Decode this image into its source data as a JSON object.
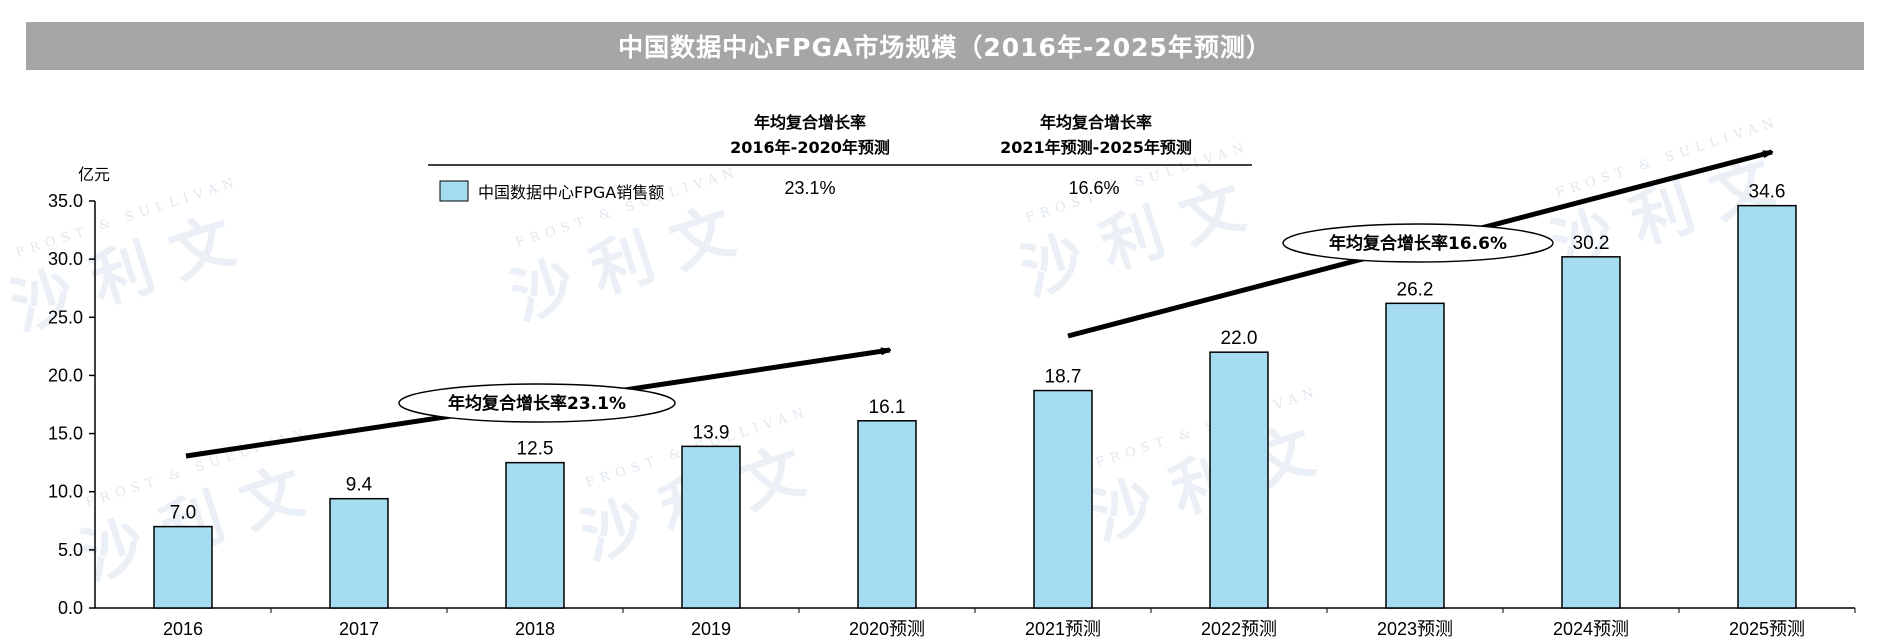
{
  "title": "中国数据中心FPGA市场规模（2016年-2025年预测）",
  "unit": "亿元",
  "legend_label": "中国数据中心FPGA销售额",
  "cagr_table": {
    "col1_header_line1": "年均复合增长率",
    "col1_header_line2": "2016年-2020年预测",
    "col1_value": "23.1%",
    "col2_header_line1": "年均复合增长率",
    "col2_header_line2": "2021年预测-2025年预测",
    "col2_value": "16.6%"
  },
  "annotations": {
    "cagr1": "年均复合增长率23.1%",
    "cagr2": "年均复合增长率16.6%"
  },
  "watermark": {
    "logo_text": "沙 利 文",
    "sub_text": "FROST & SULLIVAN"
  },
  "colors": {
    "bar_fill": "#a6dcf0",
    "bar_stroke": "#000000",
    "title_bar": "#a6a6a6"
  },
  "chart_data": {
    "type": "bar",
    "title": "中国数据中心FPGA市场规模（2016年-2025年预测）",
    "ylabel": "亿元",
    "xlabel": "",
    "categories": [
      "2016",
      "2017",
      "2018",
      "2019",
      "2020预测",
      "2021预测",
      "2022预测",
      "2023预测",
      "2024预测",
      "2025预测"
    ],
    "series": [
      {
        "name": "中国数据中心FPGA销售额",
        "values": [
          7.0,
          9.4,
          12.5,
          13.9,
          16.1,
          18.7,
          22.0,
          26.2,
          30.2,
          34.6
        ]
      }
    ],
    "ylim": [
      0,
      35
    ],
    "yticks": [
      "0.0",
      "5.0",
      "10.0",
      "15.0",
      "20.0",
      "25.0",
      "30.0",
      "35.0"
    ],
    "grid": false,
    "legend_position": "top-left"
  }
}
